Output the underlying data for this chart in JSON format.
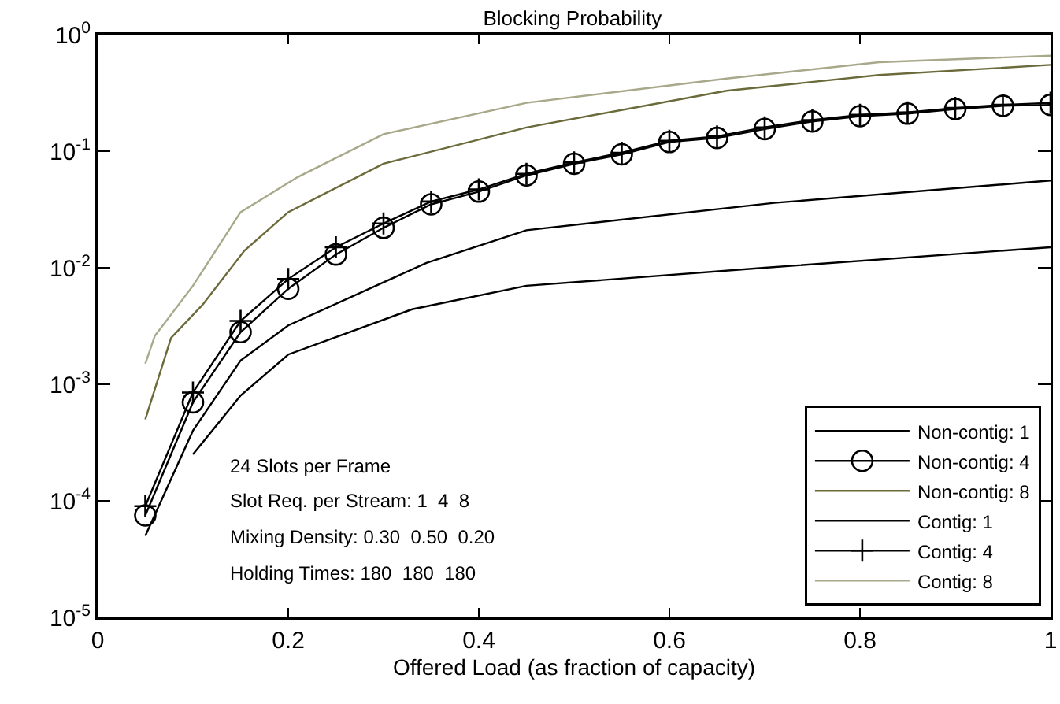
{
  "chart_data": {
    "type": "line",
    "title": "Blocking Probability",
    "xlabel": "Offered Load (as fraction of capacity)",
    "xlim": [
      0,
      1
    ],
    "xticks": [
      0,
      0.2,
      0.4,
      0.6,
      0.8,
      1
    ],
    "ylim": [
      1e-05,
      1
    ],
    "log": "y",
    "yticks": [
      {
        "value": 1e-05,
        "label": "10$^{-5}$"
      },
      {
        "value": 0.0001,
        "label": "10$^{-4}$"
      },
      {
        "value": 0.001,
        "label": "10$^{-3}$"
      },
      {
        "value": 0.01,
        "label": "10$^{-2}$"
      },
      {
        "value": 0.1,
        "label": "10$^{-1}$"
      },
      {
        "value": 1,
        "label": "10$^{0}$"
      }
    ],
    "grid": false,
    "legend": "bottom right",
    "series": [
      {
        "name": "Non-contig: 1",
        "color": "#000000",
        "line_style": "solid",
        "marker": "none",
        "x": [
          0.1,
          0.15,
          0.2,
          0.33,
          0.45,
          0.7,
          1.0
        ],
        "values": [
          0.00025,
          0.0008,
          0.0018,
          0.0044,
          0.007,
          0.01,
          0.015
        ]
      },
      {
        "name": "Non-contig: 4",
        "color": "#000000",
        "line_style": "solid",
        "marker": "circle",
        "x": [
          0.05,
          0.1,
          0.15,
          0.2,
          0.25,
          0.3,
          0.35,
          0.4,
          0.45,
          0.5,
          0.55,
          0.6,
          0.65,
          0.7,
          0.75,
          0.8,
          0.85,
          0.9,
          0.95,
          1.0
        ],
        "values": [
          7.5e-05,
          0.0007,
          0.0028,
          0.0066,
          0.013,
          0.022,
          0.035,
          0.045,
          0.062,
          0.078,
          0.094,
          0.12,
          0.13,
          0.155,
          0.18,
          0.2,
          0.21,
          0.23,
          0.245,
          0.25
        ]
      },
      {
        "name": "Non-contig: 8",
        "color": "#6b6a3a",
        "line_style": "solid",
        "marker": "none",
        "x": [
          0.05,
          0.077,
          0.11,
          0.154,
          0.2,
          0.3,
          0.45,
          0.66,
          0.82,
          1.0
        ],
        "values": [
          0.0005,
          0.0025,
          0.0048,
          0.014,
          0.03,
          0.078,
          0.16,
          0.33,
          0.45,
          0.55
        ]
      },
      {
        "name": "Contig: 1",
        "color": "#000000",
        "line_style": "solid",
        "marker": "none",
        "x": [
          0.05,
          0.1,
          0.15,
          0.2,
          0.345,
          0.45,
          0.71,
          1.0
        ],
        "values": [
          5e-05,
          0.0004,
          0.0016,
          0.0032,
          0.011,
          0.021,
          0.036,
          0.056
        ]
      },
      {
        "name": "Contig: 4",
        "color": "#000000",
        "line_style": "solid",
        "marker": "cross",
        "x": [
          0.05,
          0.1,
          0.15,
          0.2,
          0.25,
          0.3,
          0.35,
          0.4,
          0.45,
          0.5,
          0.55,
          0.6,
          0.65,
          0.7,
          0.75,
          0.8,
          0.85,
          0.9,
          0.95,
          1.0
        ],
        "values": [
          9e-05,
          0.00085,
          0.0035,
          0.008,
          0.015,
          0.024,
          0.037,
          0.047,
          0.064,
          0.08,
          0.097,
          0.123,
          0.134,
          0.16,
          0.185,
          0.205,
          0.215,
          0.235,
          0.25,
          0.26
        ]
      },
      {
        "name": "Contig: 8",
        "color": "#a8a88a",
        "line_style": "solid",
        "marker": "none",
        "x": [
          0.05,
          0.06,
          0.1,
          0.15,
          0.21,
          0.3,
          0.45,
          0.66,
          0.82,
          1.0
        ],
        "values": [
          0.0015,
          0.0026,
          0.007,
          0.03,
          0.06,
          0.14,
          0.26,
          0.42,
          0.58,
          0.66
        ]
      }
    ],
    "annotations": [
      "24 Slots per Frame",
      "Slot Req. per Stream: 1  4  8",
      "Mixing Density: 0.30  0.50  0.20",
      "Holding Times: 180  180  180"
    ]
  }
}
